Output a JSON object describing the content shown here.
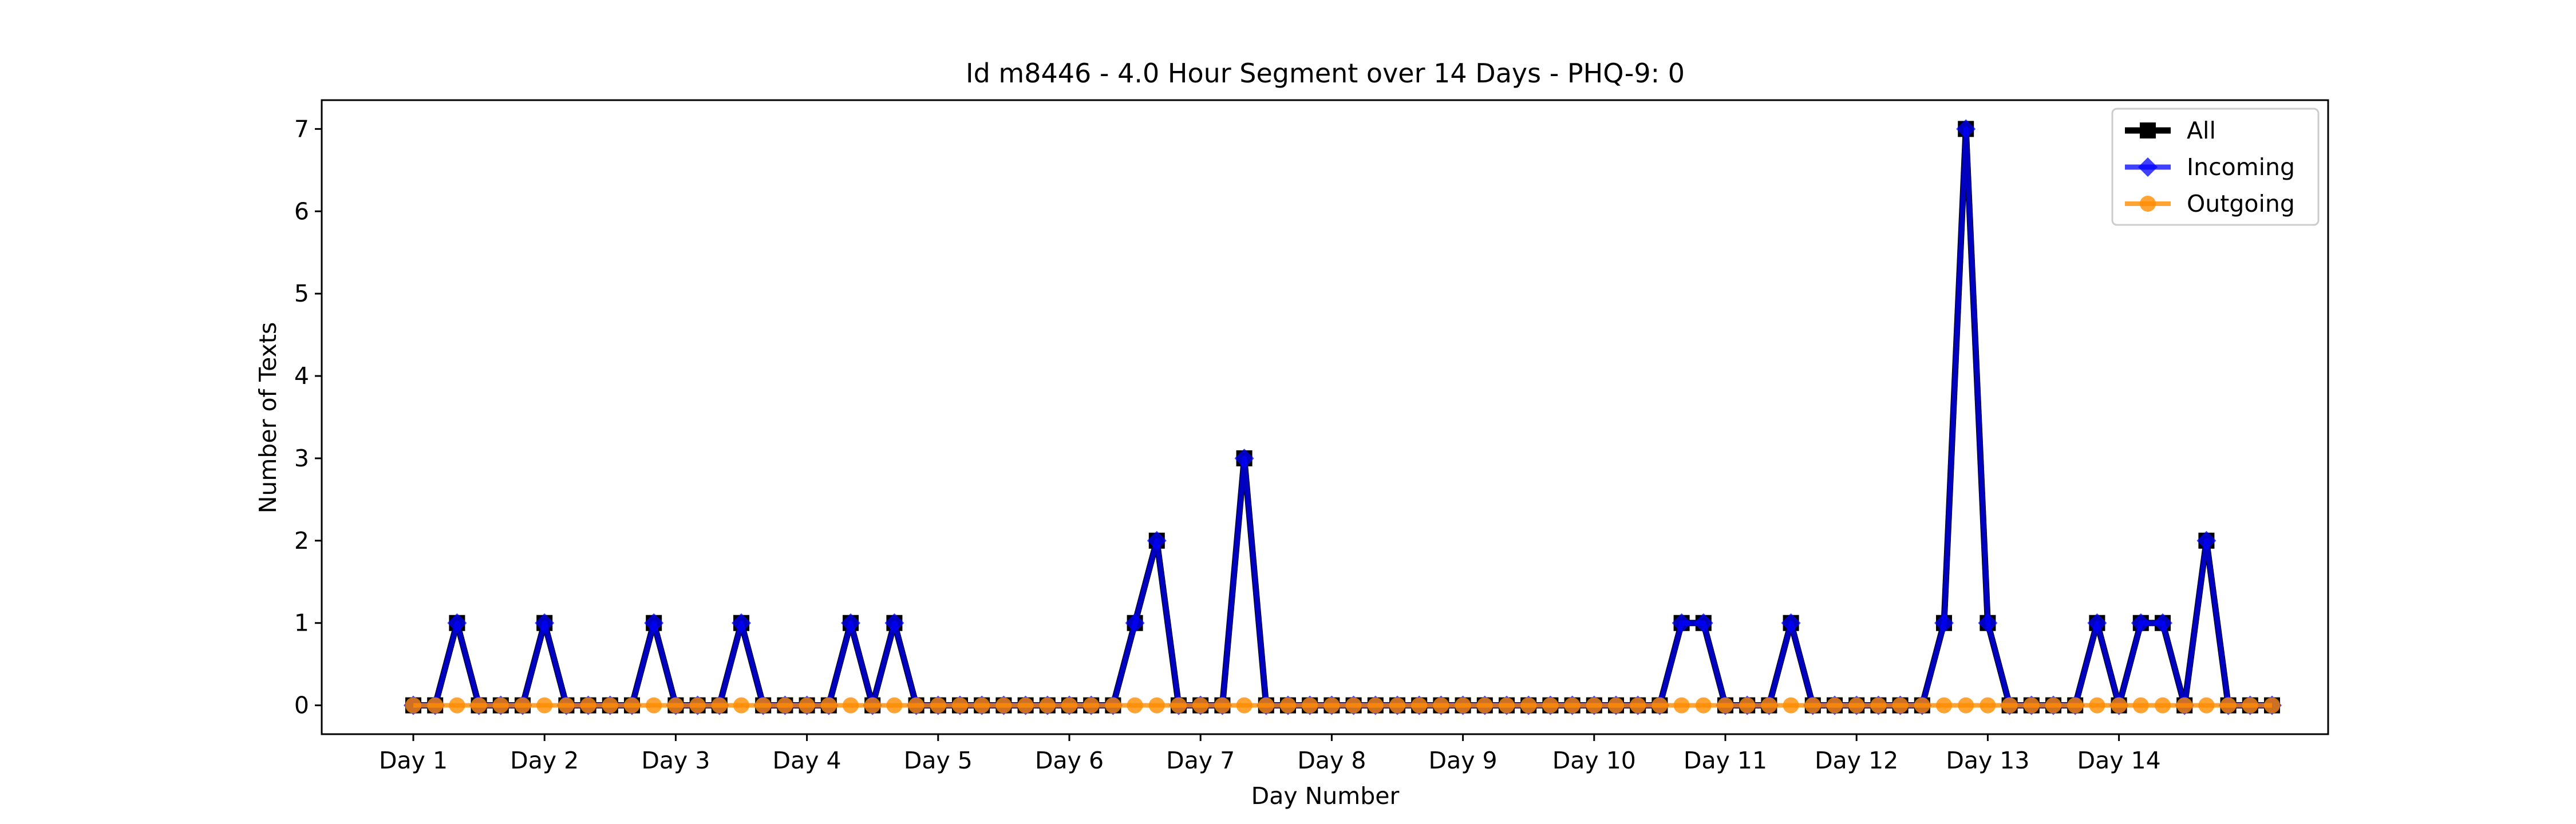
{
  "chart_data": {
    "type": "line",
    "title": "Id m8446 - 4.0 Hour Segment over 14 Days - PHQ-9: 0",
    "xlabel": "Day Number",
    "ylabel": "Number of Texts",
    "xticks": [
      "Day 1",
      "Day 2",
      "Day 3",
      "Day 4",
      "Day 5",
      "Day 6",
      "Day 7",
      "Day 8",
      "Day 9",
      "Day 10",
      "Day 11",
      "Day 12",
      "Day 13",
      "Day 14"
    ],
    "yticks": [
      0,
      1,
      2,
      3,
      4,
      5,
      6,
      7
    ],
    "ylim": [
      -0.35,
      7.35
    ],
    "segments_per_day": 6,
    "grid": false,
    "legend_position": "upper right",
    "series": [
      {
        "name": "All",
        "color": "#000000",
        "marker": "square",
        "values": [
          0,
          0,
          1,
          0,
          0,
          0,
          1,
          0,
          0,
          0,
          0,
          1,
          0,
          0,
          0,
          1,
          0,
          0,
          0,
          0,
          1,
          0,
          1,
          0,
          0,
          0,
          0,
          0,
          0,
          0,
          0,
          0,
          0,
          1,
          2,
          0,
          0,
          0,
          3,
          0,
          0,
          0,
          0,
          0,
          0,
          0,
          0,
          0,
          0,
          0,
          0,
          0,
          0,
          0,
          0,
          0,
          0,
          0,
          1,
          1,
          0,
          0,
          0,
          1,
          0,
          0,
          0,
          0,
          0,
          0,
          1,
          7,
          1,
          0,
          0,
          0,
          0,
          1,
          0,
          1,
          1,
          0,
          2,
          0,
          0,
          0
        ]
      },
      {
        "name": "Incoming",
        "color": "#0000ff",
        "marker": "diamond",
        "values": [
          0,
          0,
          1,
          0,
          0,
          0,
          1,
          0,
          0,
          0,
          0,
          1,
          0,
          0,
          0,
          1,
          0,
          0,
          0,
          0,
          1,
          0,
          1,
          0,
          0,
          0,
          0,
          0,
          0,
          0,
          0,
          0,
          0,
          1,
          2,
          0,
          0,
          0,
          3,
          0,
          0,
          0,
          0,
          0,
          0,
          0,
          0,
          0,
          0,
          0,
          0,
          0,
          0,
          0,
          0,
          0,
          0,
          0,
          1,
          1,
          0,
          0,
          0,
          1,
          0,
          0,
          0,
          0,
          0,
          0,
          1,
          7,
          1,
          0,
          0,
          0,
          0,
          1,
          0,
          1,
          1,
          0,
          2,
          0,
          0,
          0
        ]
      },
      {
        "name": "Outgoing",
        "color": "#ff8c00",
        "marker": "circle",
        "values": [
          0,
          0,
          0,
          0,
          0,
          0,
          0,
          0,
          0,
          0,
          0,
          0,
          0,
          0,
          0,
          0,
          0,
          0,
          0,
          0,
          0,
          0,
          0,
          0,
          0,
          0,
          0,
          0,
          0,
          0,
          0,
          0,
          0,
          0,
          0,
          0,
          0,
          0,
          0,
          0,
          0,
          0,
          0,
          0,
          0,
          0,
          0,
          0,
          0,
          0,
          0,
          0,
          0,
          0,
          0,
          0,
          0,
          0,
          0,
          0,
          0,
          0,
          0,
          0,
          0,
          0,
          0,
          0,
          0,
          0,
          0,
          0,
          0,
          0,
          0,
          0,
          0,
          0,
          0,
          0,
          0,
          0,
          0,
          0,
          0,
          0
        ]
      }
    ]
  }
}
